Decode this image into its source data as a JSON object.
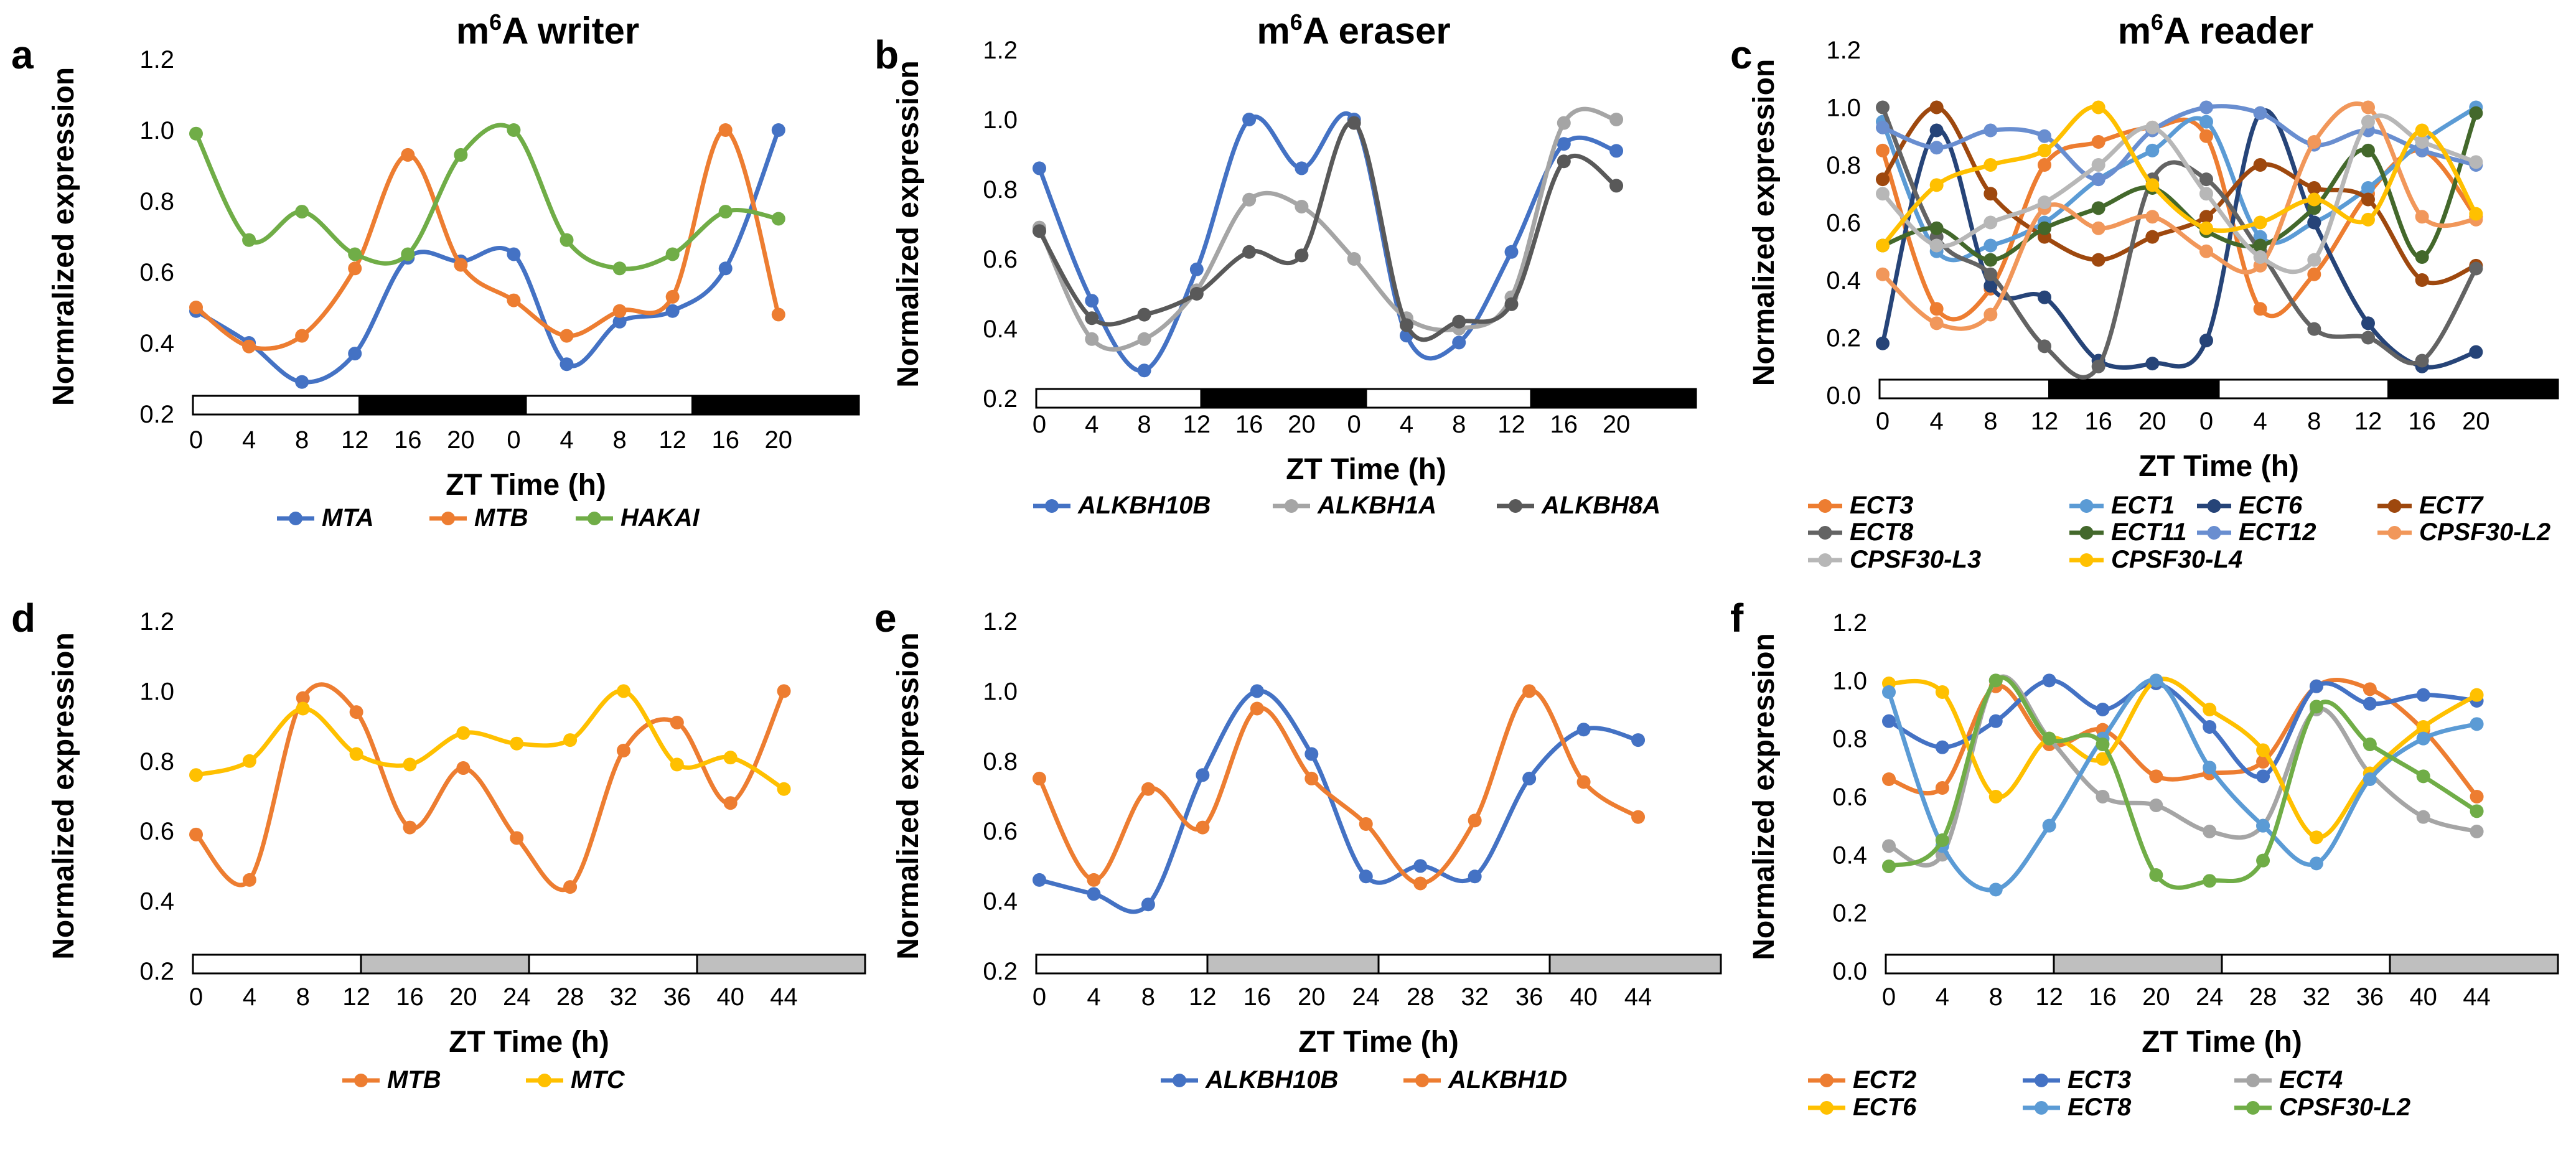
{
  "figure": {
    "ylabel": "Normalized expression",
    "ylabel_alt": "Normralized expression",
    "xlabel": "ZT Time (h)"
  },
  "chart_data": [
    {
      "panel": "a",
      "type": "line",
      "title_prefix": "m",
      "title_sup": "6",
      "title_suffix": "A writer",
      "xlabel": "ZT Time (h)",
      "ylabel": "Normralized expression",
      "ylim": [
        0.2,
        1.2
      ],
      "yticks": [
        "0.2",
        "0.4",
        "0.6",
        "0.8",
        "1.0",
        "1.2"
      ],
      "categories": [
        "0",
        "4",
        "8",
        "12",
        "16",
        "20",
        "0",
        "4",
        "8",
        "12",
        "16",
        "20"
      ],
      "day_night": [
        "light",
        "dark",
        "light",
        "dark"
      ],
      "series": [
        {
          "name": "MTA",
          "color": "#4472C4",
          "values": [
            0.49,
            0.4,
            0.29,
            0.37,
            0.64,
            0.63,
            0.65,
            0.34,
            0.46,
            0.49,
            0.61,
            1.0
          ]
        },
        {
          "name": "MTB",
          "color": "#ED7D31",
          "values": [
            0.5,
            0.39,
            0.42,
            0.61,
            0.93,
            0.62,
            0.52,
            0.42,
            0.49,
            0.53,
            1.0,
            0.48
          ]
        },
        {
          "name": "HAKAI",
          "color": "#70AD47",
          "values": [
            0.99,
            0.69,
            0.77,
            0.65,
            0.65,
            0.93,
            1.0,
            0.69,
            0.61,
            0.65,
            0.77,
            0.75
          ]
        }
      ]
    },
    {
      "panel": "b",
      "type": "line",
      "title_prefix": "m",
      "title_sup": "6",
      "title_suffix": "A eraser",
      "xlabel": "ZT Time (h)",
      "ylabel": "Normalized expression",
      "ylim": [
        0.2,
        1.2
      ],
      "yticks": [
        "0.2",
        "0.4",
        "0.6",
        "0.8",
        "1.0",
        "1.2"
      ],
      "categories": [
        "0",
        "4",
        "8",
        "12",
        "16",
        "20",
        "0",
        "4",
        "8",
        "12",
        "16",
        "20"
      ],
      "day_night": [
        "light",
        "dark",
        "light",
        "dark"
      ],
      "series": [
        {
          "name": "ALKBH10B",
          "color": "#4472C4",
          "values": [
            0.86,
            0.48,
            0.28,
            0.57,
            1.0,
            0.86,
            1.0,
            0.38,
            0.36,
            0.62,
            0.93,
            0.91
          ]
        },
        {
          "name": "ALKBH1A",
          "color": "#A5A5A5",
          "values": [
            0.69,
            0.37,
            0.37,
            0.51,
            0.77,
            0.75,
            0.6,
            0.43,
            0.4,
            0.49,
            0.99,
            1.0
          ]
        },
        {
          "name": "ALKBH8A",
          "color": "#595959",
          "values": [
            0.68,
            0.43,
            0.44,
            0.5,
            0.62,
            0.61,
            0.99,
            0.41,
            0.42,
            0.47,
            0.88,
            0.81
          ]
        }
      ]
    },
    {
      "panel": "c",
      "type": "line",
      "title_prefix": "m",
      "title_sup": "6",
      "title_suffix": "A reader",
      "xlabel": "ZT Time (h)",
      "ylabel": "Normalized expression",
      "ylim": [
        0.0,
        1.2
      ],
      "yticks": [
        "0.0",
        "0.2",
        "0.4",
        "0.6",
        "0.8",
        "1.0",
        "1.2"
      ],
      "categories": [
        "0",
        "4",
        "8",
        "12",
        "16",
        "20",
        "0",
        "4",
        "8",
        "12",
        "16",
        "20"
      ],
      "day_night": [
        "light",
        "dark",
        "light",
        "dark"
      ],
      "series": [
        {
          "name": "ECT3",
          "color": "#ED7D31",
          "values": [
            0.85,
            0.3,
            0.37,
            0.8,
            0.88,
            0.93,
            0.9,
            0.3,
            0.42,
            0.7,
            0.85,
            0.62
          ]
        },
        {
          "name": "ECT1",
          "color": "#5B9BD5",
          "values": [
            0.95,
            0.5,
            0.52,
            0.6,
            0.75,
            0.85,
            0.95,
            0.55,
            0.6,
            0.72,
            0.88,
            1.0
          ]
        },
        {
          "name": "ECT6",
          "color": "#264478",
          "values": [
            0.18,
            0.92,
            0.38,
            0.34,
            0.12,
            0.11,
            0.19,
            0.98,
            0.6,
            0.25,
            0.1,
            0.15
          ]
        },
        {
          "name": "ECT7",
          "color": "#9E480E",
          "values": [
            0.75,
            1.0,
            0.7,
            0.55,
            0.47,
            0.55,
            0.62,
            0.8,
            0.72,
            0.68,
            0.4,
            0.45
          ]
        },
        {
          "name": "ECT8",
          "color": "#636363",
          "values": [
            1.0,
            0.55,
            0.42,
            0.17,
            0.1,
            0.75,
            0.75,
            0.5,
            0.23,
            0.2,
            0.12,
            0.44
          ]
        },
        {
          "name": "ECT11",
          "color": "#43682B",
          "values": [
            0.52,
            0.58,
            0.47,
            0.58,
            0.65,
            0.72,
            0.57,
            0.52,
            0.65,
            0.85,
            0.48,
            0.98
          ]
        },
        {
          "name": "ECT12",
          "color": "#698ED0",
          "values": [
            0.93,
            0.86,
            0.92,
            0.9,
            0.75,
            0.92,
            1.0,
            0.98,
            0.87,
            0.92,
            0.85,
            0.8
          ]
        },
        {
          "name": "CPSF30-L2",
          "color": "#F1975A",
          "values": [
            0.42,
            0.25,
            0.28,
            0.65,
            0.58,
            0.62,
            0.5,
            0.45,
            0.88,
            1.0,
            0.62,
            0.61
          ]
        },
        {
          "name": "CPSF30-L3",
          "color": "#B7B7B7",
          "values": [
            0.7,
            0.52,
            0.6,
            0.67,
            0.8,
            0.93,
            0.7,
            0.48,
            0.47,
            0.95,
            0.88,
            0.81
          ]
        },
        {
          "name": "CPSF30-L4",
          "color": "#FFC000",
          "values": [
            0.52,
            0.73,
            0.8,
            0.85,
            1.0,
            0.73,
            0.58,
            0.6,
            0.68,
            0.61,
            0.92,
            0.63
          ]
        }
      ]
    },
    {
      "panel": "d",
      "type": "line",
      "title_prefix": "",
      "title_sup": "",
      "title_suffix": "",
      "xlabel": "ZT Time (h)",
      "ylabel": "Normalized expression",
      "ylim": [
        0.2,
        1.2
      ],
      "yticks": [
        "0.2",
        "0.4",
        "0.6",
        "0.8",
        "1.0",
        "1.2"
      ],
      "categories": [
        "0",
        "4",
        "8",
        "12",
        "16",
        "20",
        "24",
        "28",
        "32",
        "36",
        "40",
        "44"
      ],
      "day_night": [
        "light",
        "subjective-night",
        "light",
        "subjective-night"
      ],
      "series": [
        {
          "name": "MTB",
          "color": "#ED7D31",
          "values": [
            0.59,
            0.46,
            0.98,
            0.94,
            0.61,
            0.78,
            0.58,
            0.44,
            0.83,
            0.91,
            0.68,
            1.0
          ]
        },
        {
          "name": "MTC",
          "color": "#FFC000",
          "values": [
            0.76,
            0.8,
            0.95,
            0.82,
            0.79,
            0.88,
            0.85,
            0.86,
            1.0,
            0.79,
            0.81,
            0.72
          ]
        }
      ]
    },
    {
      "panel": "e",
      "type": "line",
      "title_prefix": "",
      "title_sup": "",
      "title_suffix": "",
      "xlabel": "ZT Time (h)",
      "ylabel": "Normalized expression",
      "ylim": [
        0.2,
        1.2
      ],
      "yticks": [
        "0.2",
        "0.4",
        "0.6",
        "0.8",
        "1.0",
        "1.2"
      ],
      "categories": [
        "0",
        "4",
        "8",
        "12",
        "16",
        "20",
        "24",
        "28",
        "32",
        "36",
        "40",
        "44"
      ],
      "day_night": [
        "light",
        "subjective-night",
        "light",
        "subjective-night"
      ],
      "series": [
        {
          "name": "ALKBH10B",
          "color": "#4472C4",
          "values": [
            0.46,
            0.42,
            0.39,
            0.76,
            1.0,
            0.82,
            0.47,
            0.5,
            0.47,
            0.75,
            0.89,
            0.86
          ]
        },
        {
          "name": "ALKBH1D",
          "color": "#ED7D31",
          "values": [
            0.75,
            0.46,
            0.72,
            0.61,
            0.95,
            0.75,
            0.62,
            0.45,
            0.63,
            1.0,
            0.74,
            0.64
          ]
        }
      ]
    },
    {
      "panel": "f",
      "type": "line",
      "title_prefix": "",
      "title_sup": "",
      "title_suffix": "",
      "xlabel": "ZT Time (h)",
      "ylabel": "Normalized expression",
      "ylim": [
        0.0,
        1.2
      ],
      "yticks": [
        "0.0",
        "0.2",
        "0.4",
        "0.6",
        "0.8",
        "1.0",
        "1.2"
      ],
      "categories": [
        "0",
        "4",
        "8",
        "12",
        "16",
        "20",
        "24",
        "28",
        "32",
        "36",
        "40",
        "44"
      ],
      "day_night": [
        "light",
        "subjective-night",
        "light",
        "subjective-night"
      ],
      "series": [
        {
          "name": "ECT2",
          "color": "#ED7D31",
          "values": [
            0.66,
            0.63,
            0.98,
            0.78,
            0.83,
            0.67,
            0.68,
            0.72,
            0.98,
            0.97,
            0.83,
            0.6
          ]
        },
        {
          "name": "ECT3",
          "color": "#4472C4",
          "values": [
            0.86,
            0.77,
            0.86,
            1.0,
            0.9,
            0.99,
            0.84,
            0.67,
            0.98,
            0.92,
            0.95,
            0.93
          ]
        },
        {
          "name": "ECT4",
          "color": "#A5A5A5",
          "values": [
            0.43,
            0.4,
            1.0,
            0.8,
            0.6,
            0.57,
            0.48,
            0.5,
            0.9,
            0.68,
            0.53,
            0.48
          ]
        },
        {
          "name": "ECT6",
          "color": "#FFC000",
          "values": [
            0.99,
            0.96,
            0.6,
            0.8,
            0.73,
            1.0,
            0.9,
            0.76,
            0.46,
            0.68,
            0.84,
            0.95
          ]
        },
        {
          "name": "ECT8",
          "color": "#5B9BD5",
          "values": [
            0.96,
            0.43,
            0.28,
            0.5,
            0.8,
            1.0,
            0.7,
            0.5,
            0.37,
            0.66,
            0.8,
            0.85
          ]
        },
        {
          "name": "CPSF30-L2",
          "color": "#70AD47",
          "values": [
            0.36,
            0.45,
            1.0,
            0.8,
            0.78,
            0.33,
            0.31,
            0.38,
            0.91,
            0.78,
            0.67,
            0.55
          ]
        }
      ]
    }
  ]
}
